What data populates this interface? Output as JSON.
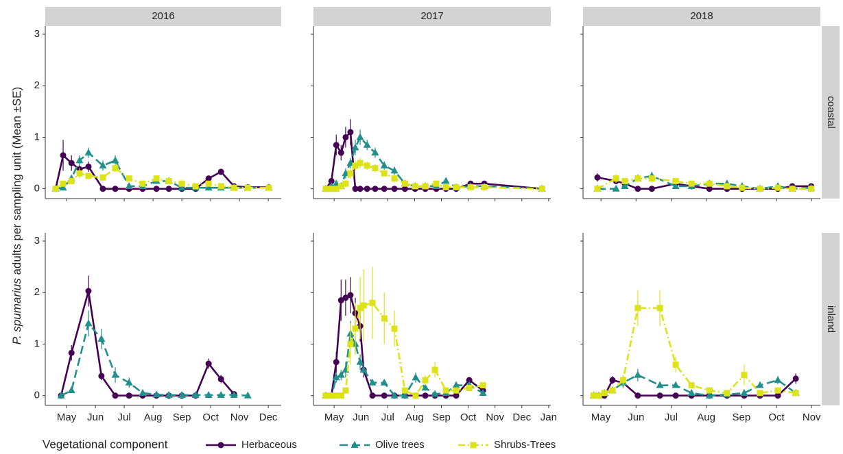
{
  "facet_columns": [
    "2016",
    "2017",
    "2018"
  ],
  "facet_rows": [
    "coastal",
    "inland"
  ],
  "ylabel": {
    "species": "P. spumarius",
    "text": "adults per sampling unit (Mean ±SE)"
  },
  "legend": {
    "title": "Vegetational component",
    "series": [
      {
        "name": "Herbaceous",
        "color": "#440154",
        "marker": "circle",
        "dash": "solid"
      },
      {
        "name": "Olive trees",
        "color": "#21908c",
        "marker": "triangle",
        "dash": "long"
      },
      {
        "name": "Shrubs-Trees",
        "color": "#dce319",
        "marker": "square",
        "dash": "dotdash"
      }
    ]
  },
  "chart_data": [
    {
      "type": "line",
      "xlim": [
        4.26,
        12.45
      ],
      "xticks": [
        5,
        6,
        7,
        8,
        9,
        10,
        11,
        12
      ],
      "ylim": [
        -0.19,
        3.16
      ],
      "yticks": [
        0,
        1,
        2,
        3
      ],
      "x": [
        4.62,
        4.88,
        5.17,
        5.45,
        5.76,
        6.26,
        6.69,
        7.17,
        7.64,
        8.12,
        8.55,
        9.0,
        9.48,
        9.93,
        10.36,
        10.81,
        11.29,
        12.02
      ],
      "series": [
        {
          "values": [
            0,
            0.65,
            0.5,
            0.38,
            0.43,
            0,
            0,
            0,
            0,
            0,
            0,
            0,
            0,
            0.2,
            0.33,
            0.05,
            0.03,
            0.03
          ],
          "errors": [
            0,
            0.3,
            0.15,
            0.1,
            0.1,
            0,
            0,
            0,
            0,
            0,
            0,
            0,
            0,
            0.05,
            0.05,
            0.02,
            0.01,
            0.01
          ]
        },
        {
          "values": [
            0,
            0.02,
            0.2,
            0.55,
            0.7,
            0.45,
            0.55,
            0.05,
            0.05,
            0.15,
            0.15,
            0.02,
            0.02,
            0.02,
            0.02,
            0.02,
            0.02,
            0.02
          ],
          "errors": [
            0,
            0.02,
            0.05,
            0.1,
            0.1,
            0.1,
            0.1,
            0.03,
            0.03,
            0.05,
            0.05,
            0.01,
            0.01,
            0.01,
            0.01,
            0.01,
            0.01,
            0.01
          ]
        },
        {
          "values": [
            0,
            0.1,
            0.15,
            0.3,
            0.25,
            0.22,
            0.4,
            0.2,
            0.1,
            0.2,
            0.15,
            0.1,
            0.05,
            0.1,
            0.05,
            0.02,
            0.02,
            0.02
          ],
          "errors": [
            0,
            0.05,
            0.05,
            0.1,
            0.05,
            0.05,
            0.08,
            0.05,
            0.03,
            0.05,
            0.05,
            0.03,
            0.02,
            0.03,
            0.02,
            0.01,
            0.01,
            0.01
          ]
        }
      ]
    },
    {
      "type": "line",
      "xlim": [
        4.23,
        13.08
      ],
      "xticks": [
        5,
        6,
        7,
        8,
        9,
        10,
        11,
        12,
        13
      ],
      "ylim": [
        -0.19,
        3.16
      ],
      "yticks": [
        0,
        1,
        2,
        3
      ],
      "x": [
        4.69,
        4.9,
        5.08,
        5.26,
        5.43,
        5.61,
        5.79,
        5.97,
        6.23,
        6.53,
        6.87,
        7.25,
        7.64,
        8.02,
        8.4,
        8.81,
        9.17,
        9.55,
        10.09,
        10.6,
        12.75
      ],
      "series": [
        {
          "values": [
            0,
            0.15,
            0.85,
            0.7,
            1.0,
            1.1,
            0,
            0,
            0,
            0,
            0,
            0,
            0,
            0,
            0,
            0,
            0,
            0,
            0.1,
            0.1,
            0
          ],
          "errors": [
            0,
            0.05,
            0.2,
            0.15,
            0.2,
            0.25,
            0,
            0,
            0,
            0,
            0,
            0,
            0,
            0,
            0,
            0,
            0,
            0,
            0.03,
            0.03,
            0
          ]
        },
        {
          "values": [
            0,
            0.05,
            0.1,
            0.05,
            0.3,
            0.5,
            0.8,
            1.0,
            0.85,
            0.7,
            0.45,
            0.35,
            0.1,
            0.05,
            0.05,
            0.05,
            0.15,
            0.03,
            0.05,
            0.05,
            0
          ],
          "errors": [
            0,
            0.02,
            0.05,
            0.03,
            0.1,
            0.1,
            0.15,
            0.15,
            0.1,
            0.1,
            0.08,
            0.08,
            0.03,
            0.02,
            0.02,
            0.02,
            0.05,
            0.01,
            0.02,
            0.02,
            0
          ]
        },
        {
          "values": [
            0,
            0,
            0,
            0.05,
            0.1,
            0.3,
            0.45,
            0.5,
            0.45,
            0.4,
            0.3,
            0.2,
            0.1,
            0.05,
            0.05,
            0.1,
            0.03,
            0.03,
            0.03,
            0.03,
            0
          ],
          "errors": [
            0,
            0,
            0,
            0.02,
            0.05,
            0.1,
            0.1,
            0.1,
            0.08,
            0.08,
            0.05,
            0.05,
            0.03,
            0.02,
            0.02,
            0.03,
            0.01,
            0.01,
            0.01,
            0.01,
            0
          ]
        }
      ]
    },
    {
      "type": "line",
      "xlim": [
        4.49,
        11.25
      ],
      "xticks": [
        5,
        6,
        7,
        8,
        9,
        10,
        11
      ],
      "ylim": [
        -0.19,
        3.16
      ],
      "yticks": [
        0,
        1,
        2,
        3
      ],
      "x": [
        4.9,
        5.43,
        5.68,
        6.05,
        6.45,
        7.13,
        7.58,
        8.09,
        8.59,
        9.02,
        9.53,
        10.04,
        10.45,
        10.99
      ],
      "series": [
        {
          "values": [
            0.22,
            0.15,
            0.1,
            0,
            0,
            0.1,
            0.05,
            0,
            0,
            0,
            0,
            0,
            0.05,
            0.05
          ],
          "errors": [
            0.08,
            0.05,
            0.05,
            0,
            0,
            0.03,
            0.02,
            0,
            0,
            0,
            0,
            0,
            0.02,
            0.02
          ]
        },
        {
          "values": [
            0,
            0,
            0.05,
            0.2,
            0.25,
            0.05,
            0.05,
            0.1,
            0.1,
            0.05,
            0,
            0.05,
            0,
            0.02
          ],
          "errors": [
            0,
            0,
            0.02,
            0.05,
            0.08,
            0.02,
            0.02,
            0.03,
            0.03,
            0.02,
            0,
            0.02,
            0,
            0.01
          ]
        },
        {
          "values": [
            0,
            0.2,
            0.15,
            0.2,
            0.2,
            0.15,
            0.1,
            0.1,
            0.05,
            0.02,
            0,
            0.02,
            0,
            0
          ],
          "errors": [
            0,
            0.08,
            0.05,
            0.05,
            0.05,
            0.05,
            0.03,
            0.03,
            0.02,
            0.01,
            0,
            0.01,
            0,
            0
          ]
        }
      ]
    },
    {
      "type": "line",
      "xlim": [
        4.26,
        12.45
      ],
      "xticks": [
        {
          "value": 5,
          "label": "May"
        },
        {
          "value": 6,
          "label": "Jun"
        },
        {
          "value": 7,
          "label": "Jul"
        },
        {
          "value": 8,
          "label": "Aug"
        },
        {
          "value": 9,
          "label": "Sep"
        },
        {
          "value": 10,
          "label": "Oct"
        },
        {
          "value": 11,
          "label": "Nov"
        },
        {
          "value": 12,
          "label": "Dec"
        }
      ],
      "ylim": [
        -0.19,
        3.16
      ],
      "yticks": [
        0,
        1,
        2,
        3
      ],
      "x": [
        4.81,
        5.17,
        5.76,
        6.21,
        6.69,
        7.17,
        7.64,
        8.12,
        8.55,
        9.0,
        9.48,
        9.93,
        10.36,
        10.81,
        11.29
      ],
      "series": [
        {
          "values": [
            0,
            0.83,
            2.03,
            0.38,
            0,
            0,
            0,
            0,
            0,
            0,
            0,
            0.62,
            0.32,
            0.03,
            null
          ],
          "errors": [
            0,
            0.15,
            0.3,
            0.08,
            0,
            0,
            0,
            0,
            0,
            0,
            0,
            0.1,
            0.08,
            0.02,
            null
          ]
        },
        {
          "values": [
            0,
            0.1,
            1.4,
            1.1,
            0.4,
            0.25,
            0.05,
            0.02,
            0.01,
            0.01,
            0.01,
            0.01,
            0.01,
            0.01,
            0
          ],
          "errors": [
            0,
            0.05,
            0.25,
            0.2,
            0.15,
            0.1,
            0.03,
            0.01,
            0.01,
            0.01,
            0.01,
            0.01,
            0.01,
            0.01,
            0
          ]
        },
        {
          "values": [
            null,
            null,
            null,
            null,
            null,
            null,
            null,
            null,
            null,
            null,
            null,
            null,
            null,
            null,
            null
          ],
          "errors": [
            null,
            null,
            null,
            null,
            null,
            null,
            null,
            null,
            null,
            null,
            null,
            null,
            null,
            null,
            null
          ]
        }
      ]
    },
    {
      "type": "line",
      "xlim": [
        4.23,
        13.08
      ],
      "xticks": [
        {
          "value": 5,
          "label": "May"
        },
        {
          "value": 6,
          "label": "Jun"
        },
        {
          "value": 7,
          "label": "Jul"
        },
        {
          "value": 8,
          "label": "Aug"
        },
        {
          "value": 9,
          "label": "Sep"
        },
        {
          "value": 10,
          "label": "Oct"
        },
        {
          "value": 11,
          "label": "Nov"
        },
        {
          "value": 12,
          "label": "Dec"
        },
        {
          "value": 13,
          "label": "Jan"
        }
      ],
      "ylim": [
        -0.19,
        3.16
      ],
      "yticks": [
        0,
        1,
        2,
        3
      ],
      "x": [
        4.69,
        4.9,
        5.08,
        5.26,
        5.43,
        5.61,
        5.79,
        5.97,
        6.1,
        6.43,
        6.87,
        7.25,
        7.64,
        8.04,
        8.4,
        8.76,
        9.17,
        9.55,
        10.04,
        10.55
      ],
      "series": [
        {
          "values": [
            0,
            0,
            0.65,
            1.85,
            1.9,
            1.95,
            1.6,
            1.35,
            0.5,
            0,
            0,
            0,
            0,
            0,
            0,
            0,
            0,
            0,
            0.3,
            0.1
          ],
          "errors": [
            0,
            0,
            0.2,
            0.4,
            0.35,
            0.35,
            0.3,
            0.3,
            0.15,
            0,
            0,
            0,
            0,
            0,
            0,
            0,
            0,
            0,
            0.05,
            0.03
          ]
        },
        {
          "values": [
            0,
            0,
            0.35,
            0.4,
            0.5,
            1.2,
            1.0,
            0.65,
            0.5,
            0.25,
            0.25,
            0,
            0,
            0.35,
            0.15,
            0.03,
            0.05,
            0.2,
            0.2,
            0.05
          ],
          "errors": [
            0,
            0,
            0.1,
            0.1,
            0.15,
            0.25,
            0.2,
            0.15,
            0.1,
            0.05,
            0.05,
            0,
            0,
            0.1,
            0.05,
            0.01,
            0.02,
            0.05,
            0.05,
            0.02
          ]
        },
        {
          "values": [
            0,
            0,
            0,
            0,
            0.1,
            1.0,
            1.3,
            1.7,
            1.75,
            1.8,
            1.5,
            1.3,
            0.1,
            0,
            0.3,
            0.5,
            0.1,
            0.1,
            0.15,
            0.2
          ],
          "errors": [
            0,
            0,
            0,
            0,
            0.05,
            0.4,
            0.5,
            0.6,
            0.7,
            0.7,
            0.5,
            0.35,
            0.05,
            0,
            0.1,
            0.15,
            0.05,
            0.05,
            0.05,
            0.05
          ]
        }
      ]
    },
    {
      "type": "line",
      "xlim": [
        4.49,
        11.25
      ],
      "xticks": [
        {
          "value": 5,
          "label": "May"
        },
        {
          "value": 6,
          "label": "Jun"
        },
        {
          "value": 7,
          "label": "Jul"
        },
        {
          "value": 8,
          "label": "Aug"
        },
        {
          "value": 9,
          "label": "Sep"
        },
        {
          "value": 10,
          "label": "Oct"
        },
        {
          "value": 11,
          "label": "Nov"
        }
      ],
      "ylim": [
        -0.19,
        3.16
      ],
      "yticks": [
        0,
        1,
        2,
        3
      ],
      "x": [
        4.79,
        4.94,
        5.1,
        5.33,
        5.63,
        6.05,
        6.68,
        7.13,
        7.58,
        8.09,
        8.59,
        9.08,
        9.53,
        10.04,
        10.55
      ],
      "series": [
        {
          "values": [
            0,
            0,
            0,
            0.3,
            0.25,
            0,
            0,
            0,
            0,
            0,
            0,
            0,
            0,
            0,
            0.33
          ],
          "errors": [
            0,
            0,
            0,
            0.08,
            0.05,
            0,
            0,
            0,
            0,
            0,
            0,
            0,
            0,
            0,
            0.1
          ]
        },
        {
          "values": [
            0,
            0,
            0.05,
            0.1,
            0.25,
            0.4,
            0.2,
            0.2,
            0.05,
            0,
            0.02,
            0.05,
            0.2,
            0.3,
            0.05
          ],
          "errors": [
            0,
            0,
            0.02,
            0.05,
            0.1,
            0.12,
            0.05,
            0.05,
            0.02,
            0,
            0.01,
            0.02,
            0.05,
            0.08,
            0.02
          ]
        },
        {
          "values": [
            0,
            0,
            0.05,
            0.1,
            0.3,
            1.7,
            1.7,
            0.6,
            0.2,
            0.1,
            0.05,
            0.4,
            0.05,
            0.1,
            0.05
          ],
          "errors": [
            0,
            0,
            0.02,
            0.05,
            0.1,
            0.35,
            0.35,
            0.15,
            0.05,
            0.03,
            0.02,
            0.2,
            0.02,
            0.03,
            0.02
          ]
        }
      ]
    }
  ]
}
